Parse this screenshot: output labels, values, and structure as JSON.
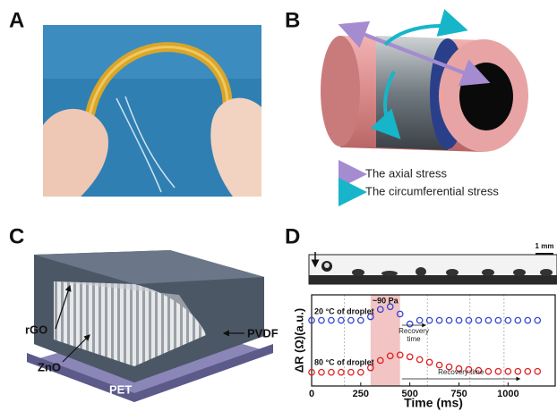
{
  "panels": {
    "a": {
      "label": "A"
    },
    "b": {
      "label": "B",
      "legend": [
        "The axial stress",
        "The circumferential stress"
      ]
    },
    "c": {
      "label": "C",
      "layers": [
        "rGO",
        "ZnO",
        "PVDF",
        "PET"
      ]
    },
    "d": {
      "label": "D",
      "scale_bar": "1 mm",
      "chart_data": {
        "type": "line",
        "x_label": "Time (ms)",
        "y_label": "ΔR (Ω)(a.u.)",
        "xlim": [
          0,
          1240
        ],
        "xticks": [
          0,
          250,
          500,
          750,
          1000
        ],
        "ylim": [
          0,
          1
        ],
        "shaded_range": [
          300,
          450
        ],
        "annotations": {
          "pressure": "~90 Pa",
          "recovery_20": [
            "Recovery",
            "time"
          ],
          "recovery_80": "Recovery time"
        },
        "x": [
          0,
          50,
          100,
          150,
          200,
          250,
          300,
          350,
          400,
          450,
          500,
          550,
          600,
          650,
          700,
          750,
          800,
          850,
          900,
          950,
          1000,
          1050,
          1100,
          1150
        ],
        "series": [
          {
            "name": "20 °C of droplet",
            "color": "#3346d6",
            "values": [
              0.72,
              0.72,
              0.72,
              0.72,
              0.72,
              0.72,
              0.76,
              0.84,
              0.87,
              0.79,
              0.68,
              0.72,
              0.72,
              0.72,
              0.72,
              0.72,
              0.72,
              0.72,
              0.72,
              0.72,
              0.72,
              0.72,
              0.72,
              0.72
            ]
          },
          {
            "name": "80 °C of droplet",
            "color": "#e01f1f",
            "values": [
              0.15,
              0.15,
              0.15,
              0.15,
              0.15,
              0.15,
              0.2,
              0.28,
              0.33,
              0.34,
              0.32,
              0.29,
              0.26,
              0.23,
              0.21,
              0.19,
              0.18,
              0.17,
              0.16,
              0.16,
              0.16,
              0.16,
              0.16,
              0.16
            ]
          }
        ]
      }
    }
  }
}
